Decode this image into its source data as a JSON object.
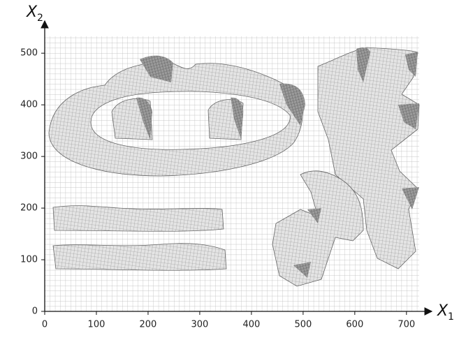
{
  "axes": {
    "x": {
      "label": "X",
      "subscript": "1",
      "lim": [
        0,
        730
      ],
      "ticks": [
        0,
        100,
        200,
        300,
        400,
        500,
        600,
        700
      ]
    },
    "y": {
      "label": "X",
      "subscript": "2",
      "lim": [
        0,
        530
      ],
      "ticks": [
        0,
        100,
        200,
        300,
        400,
        500
      ]
    }
  }
}
